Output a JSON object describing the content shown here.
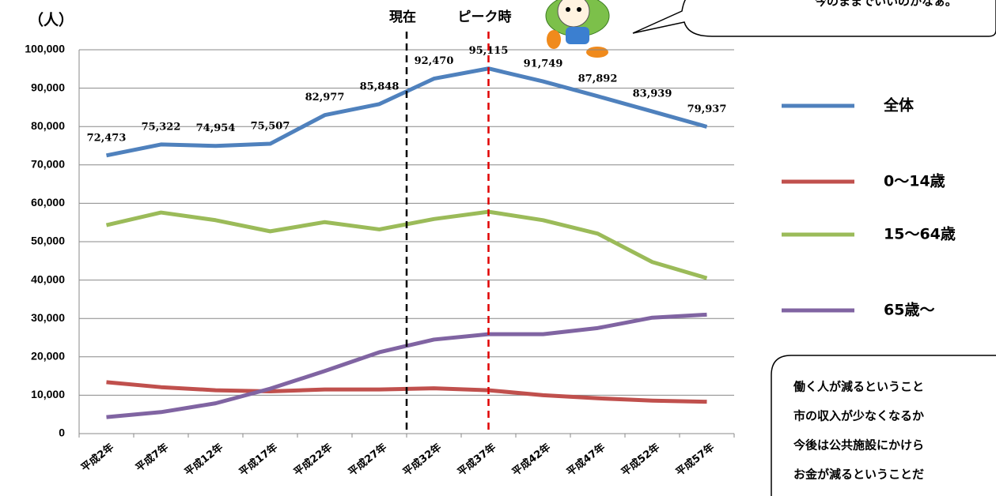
{
  "chart_data": {
    "type": "line",
    "y_label": "（人）",
    "categories": [
      "平成2年",
      "平成7年",
      "平成12年",
      "平成17年",
      "平成22年",
      "平成27年",
      "平成32年",
      "平成37年",
      "平成42年",
      "平成47年",
      "平成52年",
      "平成57年"
    ],
    "series": [
      {
        "name": "全体",
        "color": "#4f81bd",
        "values": [
          72473,
          75322,
          74954,
          75507,
          82977,
          85848,
          92470,
          95115,
          91749,
          87892,
          83939,
          79937
        ],
        "value_labels": [
          "72,473",
          "75,322",
          "74,954",
          "75,507",
          "82,977",
          "85,848",
          "92,470",
          "95,115",
          "91,749",
          "87,892",
          "83,939",
          "79,937"
        ]
      },
      {
        "name": "0～14歳",
        "color": "#c0504d",
        "values": [
          13400,
          12100,
          11300,
          11000,
          11500,
          11500,
          11800,
          11300,
          10000,
          9200,
          8600,
          8300
        ]
      },
      {
        "name": "15～64歳",
        "color": "#9bbb59",
        "values": [
          54300,
          57600,
          55600,
          52700,
          55100,
          53200,
          55900,
          57800,
          55600,
          52100,
          44700,
          40500
        ]
      },
      {
        "name": "65歳～",
        "color": "#8064a2",
        "values": [
          4300,
          5600,
          7900,
          11700,
          16300,
          21200,
          24500,
          25900,
          25900,
          27500,
          30200,
          31000
        ]
      }
    ],
    "ylim": [
      0,
      100000
    ],
    "yticks": [
      0,
      {
        "value": 10000,
        "label": "10,000"
      },
      {
        "value": 20000,
        "label": "20,000"
      },
      {
        "value": 30000,
        "label": "30,000"
      },
      {
        "value": 40000,
        "label": "40,000"
      },
      {
        "value": 50000,
        "label": "50,000"
      },
      {
        "value": 60000,
        "label": "60,000"
      },
      {
        "value": 70000,
        "label": "70,000"
      },
      {
        "value": 80000,
        "label": "80,000"
      },
      {
        "value": 90000,
        "label": "90,000"
      },
      {
        "value": 100000,
        "label": "100,000"
      }
    ],
    "grid": true,
    "reference_lines": [
      {
        "label": "現在",
        "x": 5.5,
        "color": "#000000"
      },
      {
        "label": "ピーク時",
        "x": 7,
        "color": "#e00000"
      }
    ]
  },
  "callouts": {
    "speech": "今のままでいいのかなぁ。",
    "note_lines": [
      "働く人が減るということ",
      "市の収入が少なくなるか",
      "今後は公共施設にかけら",
      "お金が減るということだ"
    ]
  }
}
